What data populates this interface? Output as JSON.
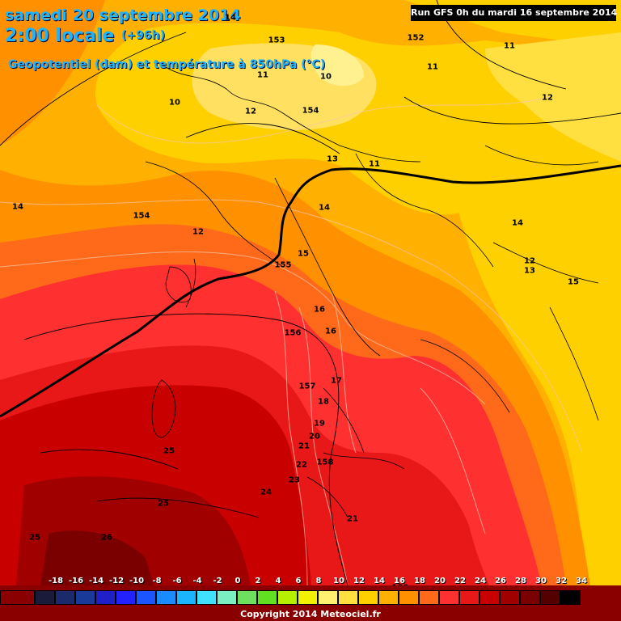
{
  "header": {
    "date_line": "samedi 20 septembre 2014",
    "time_line": "2:00 locale",
    "lead_time": "(+96h)",
    "parameter": "Geopotentiel (dam) et température à 850hPa (°C)",
    "run_info": "Run GFS 0h du mardi 16 septembre 2014"
  },
  "map": {
    "temperature_labels": [
      "14",
      "14",
      "11",
      "10",
      "11",
      "10",
      "12",
      "13",
      "14",
      "12",
      "12",
      "13",
      "14",
      "15",
      "15",
      "16",
      "16",
      "17",
      "18",
      "19",
      "20",
      "21",
      "22",
      "23",
      "24",
      "25",
      "25",
      "25",
      "26",
      "21",
      "11",
      "11",
      "12"
    ],
    "geopotential_labels": [
      "153",
      "152",
      "154",
      "154",
      "155",
      "156",
      "157",
      "158",
      "159"
    ]
  },
  "legend": {
    "values": [
      "-18",
      "-16",
      "-14",
      "-12",
      "-10",
      "-8",
      "-6",
      "-4",
      "-2",
      "0",
      "2",
      "4",
      "6",
      "8",
      "10",
      "12",
      "14",
      "16",
      "18",
      "20",
      "22",
      "24",
      "26",
      "28",
      "30",
      "32",
      "34"
    ],
    "colors": [
      "#1a1a3a",
      "#1a2a6a",
      "#1a3a9a",
      "#2020c8",
      "#2222ff",
      "#1a55ff",
      "#1a8cff",
      "#1ab4ff",
      "#40e0ff",
      "#7af0c0",
      "#6ee060",
      "#60e020",
      "#b4f000",
      "#f0f000",
      "#fff070",
      "#ffe040",
      "#ffd000",
      "#ffb000",
      "#ff9000",
      "#ff6a1a",
      "#ff3030",
      "#e81818",
      "#c80000",
      "#a00000",
      "#7a0000",
      "#550000",
      "#000000"
    ],
    "copyright": "Copyright 2014 Meteociel.fr"
  }
}
